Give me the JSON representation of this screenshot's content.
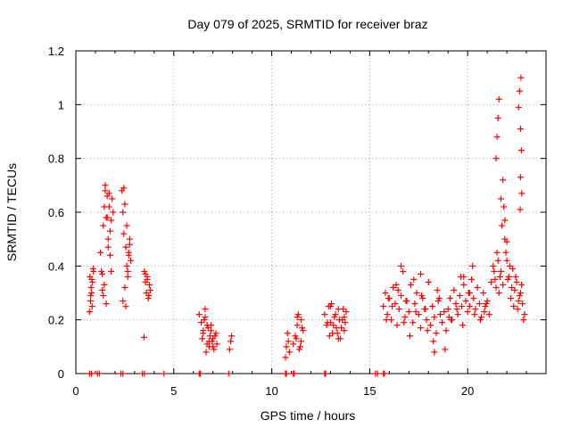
{
  "chart_data": {
    "type": "scatter",
    "title": "Day 079 of 2025, SRMTID for receiver braz",
    "xlabel": "GPS time / hours",
    "ylabel": "SRMTID / TECUs",
    "xlim": [
      0,
      24
    ],
    "ylim": [
      0,
      1.2
    ],
    "xticks": [
      0,
      5,
      10,
      15,
      20
    ],
    "xtick_labels": [
      "0",
      "5",
      "10",
      "15",
      "20"
    ],
    "yticks": [
      0,
      0.2,
      0.4,
      0.6,
      0.8,
      1.0,
      1.2
    ],
    "ytick_labels": [
      "0",
      "0.2",
      "0.4",
      "0.6",
      "0.8",
      "1",
      "1.2"
    ],
    "grid": true,
    "marker": "plus",
    "color": "#ff0000",
    "series": [
      {
        "name": "SRMTID",
        "x": [
          0.7,
          0.75,
          0.8,
          0.85,
          0.9,
          0.72,
          0.78,
          0.83,
          0.88,
          0.76,
          0.82,
          1.25,
          1.3,
          1.35,
          1.4,
          1.45,
          1.5,
          1.55,
          1.6,
          1.65,
          1.7,
          1.75,
          1.8,
          1.85,
          1.9,
          1.35,
          1.45,
          1.55,
          1.65,
          1.75,
          1.5,
          1.6,
          1.7,
          1.4,
          1.8,
          2.35,
          2.4,
          2.45,
          2.5,
          2.55,
          2.6,
          2.65,
          2.7,
          2.75,
          2.8,
          2.4,
          2.5,
          2.6,
          2.7,
          2.55,
          2.65,
          2.45,
          2.75,
          3.5,
          3.55,
          3.6,
          3.65,
          3.7,
          3.75,
          3.8,
          3.55,
          3.65,
          3.72,
          3.48,
          6.3,
          6.4,
          6.5,
          6.6,
          6.7,
          6.8,
          6.9,
          7.0,
          7.1,
          7.2,
          6.45,
          6.55,
          6.65,
          6.75,
          6.85,
          6.95,
          7.05,
          7.15,
          6.6,
          6.8,
          7.0,
          6.5,
          6.7,
          6.9,
          7.85,
          7.9,
          7.95,
          10.7,
          10.75,
          10.8,
          10.85,
          10.9,
          11.1,
          11.2,
          11.3,
          11.4,
          11.5,
          11.6,
          11.25,
          11.35,
          11.45,
          11.55,
          11.3,
          11.5,
          12.7,
          12.8,
          12.9,
          13.0,
          13.1,
          13.2,
          13.3,
          13.4,
          13.5,
          13.6,
          13.7,
          13.8,
          12.85,
          12.95,
          13.05,
          13.15,
          13.25,
          13.35,
          13.45,
          13.55,
          13.65,
          13.75,
          13.0,
          13.4,
          13.7,
          15.7,
          15.8,
          15.9,
          16.0,
          16.1,
          16.2,
          16.3,
          16.4,
          16.5,
          16.6,
          16.7,
          16.8,
          16.9,
          17.0,
          17.1,
          17.2,
          17.3,
          17.4,
          17.5,
          17.6,
          17.7,
          17.8,
          17.9,
          18.0,
          18.1,
          18.2,
          18.3,
          18.4,
          18.5,
          18.6,
          18.7,
          18.8,
          18.9,
          19.0,
          19.1,
          19.2,
          19.3,
          19.4,
          19.5,
          19.6,
          19.7,
          19.8,
          19.9,
          20.0,
          20.1,
          20.2,
          20.3,
          20.4,
          20.5,
          20.6,
          20.7,
          20.8,
          20.9,
          21.0,
          21.1,
          21.2,
          15.85,
          16.15,
          16.45,
          16.75,
          17.05,
          17.35,
          17.65,
          17.95,
          18.25,
          18.55,
          18.85,
          19.15,
          19.45,
          19.75,
          20.05,
          20.35,
          20.65,
          20.95,
          15.95,
          16.35,
          16.85,
          17.25,
          17.85,
          18.45,
          19.05,
          19.65,
          20.25,
          20.85,
          16.6,
          17.6,
          18.3,
          19.8,
          20.1,
          21.3,
          21.4,
          21.5,
          21.6,
          21.7,
          21.8,
          21.9,
          22.0,
          22.1,
          22.2,
          22.3,
          22.4,
          22.5,
          22.6,
          22.7,
          22.8,
          22.9,
          21.35,
          21.45,
          21.55,
          21.65,
          21.75,
          21.85,
          21.95,
          22.05,
          22.15,
          22.25,
          22.35,
          22.45,
          22.55,
          22.65,
          22.75,
          22.85,
          21.45,
          21.5,
          21.55,
          21.6,
          21.7,
          21.8,
          21.9,
          22.0,
          22.6,
          22.65,
          22.7,
          22.72,
          22.74,
          22.76,
          22.68,
          22.7,
          0.7,
          0.8,
          1.1,
          1.2,
          2.3,
          2.4,
          3.4,
          3.5,
          4.5,
          6.3,
          6.35,
          7.8,
          10.7,
          10.75,
          11.1,
          11.15,
          12.7,
          12.75,
          15.3,
          15.4,
          15.7,
          15.75
        ],
        "y": [
          0.23,
          0.27,
          0.3,
          0.34,
          0.38,
          0.36,
          0.32,
          0.25,
          0.39,
          0.29,
          0.35,
          0.45,
          0.38,
          0.31,
          0.55,
          0.62,
          0.68,
          0.58,
          0.66,
          0.5,
          0.62,
          0.44,
          0.57,
          0.65,
          0.6,
          0.37,
          0.33,
          0.26,
          0.47,
          0.53,
          0.7,
          0.58,
          0.67,
          0.29,
          0.38,
          0.68,
          0.6,
          0.52,
          0.63,
          0.47,
          0.4,
          0.36,
          0.45,
          0.5,
          0.42,
          0.27,
          0.32,
          0.55,
          0.44,
          0.25,
          0.38,
          0.69,
          0.48,
          0.38,
          0.34,
          0.3,
          0.36,
          0.28,
          0.33,
          0.31,
          0.37,
          0.35,
          0.29,
          0.135,
          0.22,
          0.19,
          0.15,
          0.24,
          0.18,
          0.12,
          0.16,
          0.1,
          0.14,
          0.11,
          0.13,
          0.2,
          0.08,
          0.17,
          0.14,
          0.12,
          0.09,
          0.15,
          0.21,
          0.1,
          0.13,
          0.16,
          0.11,
          0.18,
          0.09,
          0.12,
          0.14,
          0.06,
          0.1,
          0.15,
          0.12,
          0.08,
          0.11,
          0.14,
          0.18,
          0.09,
          0.2,
          0.16,
          0.13,
          0.22,
          0.1,
          0.17,
          0.21,
          0.12,
          0.22,
          0.18,
          0.25,
          0.19,
          0.15,
          0.21,
          0.17,
          0.24,
          0.13,
          0.2,
          0.16,
          0.23,
          0.19,
          0.14,
          0.26,
          0.18,
          0.22,
          0.15,
          0.2,
          0.17,
          0.24,
          0.19,
          0.25,
          0.13,
          0.21,
          0.25,
          0.3,
          0.22,
          0.28,
          0.2,
          0.32,
          0.26,
          0.18,
          0.24,
          0.29,
          0.38,
          0.21,
          0.27,
          0.23,
          0.33,
          0.19,
          0.26,
          0.3,
          0.22,
          0.17,
          0.28,
          0.24,
          0.2,
          0.34,
          0.18,
          0.25,
          0.21,
          0.15,
          0.27,
          0.22,
          0.19,
          0.23,
          0.16,
          0.24,
          0.28,
          0.2,
          0.31,
          0.26,
          0.22,
          0.29,
          0.25,
          0.33,
          0.27,
          0.23,
          0.3,
          0.35,
          0.28,
          0.24,
          0.32,
          0.26,
          0.21,
          0.3,
          0.25,
          0.27,
          0.22,
          0.34,
          0.2,
          0.25,
          0.31,
          0.19,
          0.14,
          0.23,
          0.29,
          0.16,
          0.12,
          0.28,
          0.09,
          0.2,
          0.24,
          0.18,
          0.3,
          0.22,
          0.2,
          0.26,
          0.28,
          0.33,
          0.27,
          0.35,
          0.24,
          0.31,
          0.21,
          0.36,
          0.4,
          0.23,
          0.4,
          0.37,
          0.08,
          0.36,
          0.25,
          0.4,
          0.35,
          0.45,
          0.3,
          0.38,
          0.33,
          0.5,
          0.42,
          0.36,
          0.28,
          0.39,
          0.31,
          0.34,
          0.27,
          0.3,
          0.26,
          0.22,
          0.38,
          0.32,
          0.42,
          0.36,
          0.55,
          0.62,
          0.45,
          0.35,
          0.4,
          0.32,
          0.25,
          0.36,
          0.24,
          0.29,
          0.33,
          0.2,
          0.8,
          0.88,
          0.95,
          1.02,
          0.65,
          0.72,
          0.57,
          0.49,
          0.99,
          1.05,
          0.91,
          1.1,
          0.83,
          0.67,
          0.61,
          0.73,
          0,
          0,
          0,
          0,
          0,
          0,
          0,
          0,
          0,
          0,
          0,
          0,
          0,
          0,
          0,
          0,
          0,
          0,
          0,
          0,
          0,
          0
        ]
      }
    ]
  }
}
